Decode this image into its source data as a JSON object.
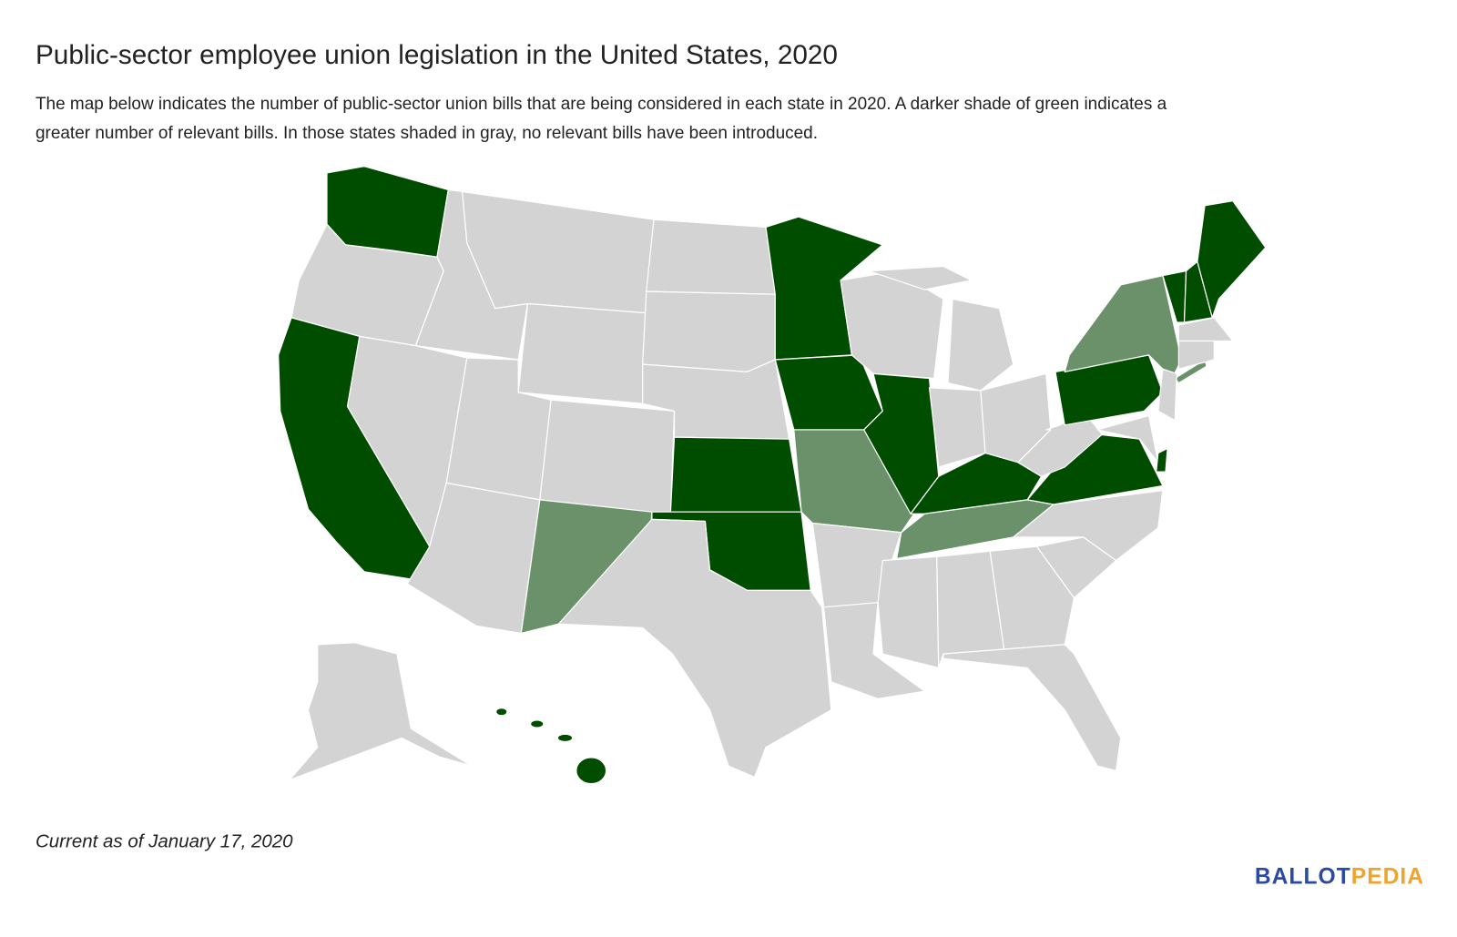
{
  "header": {
    "title": "Public-sector employee union legislation in the United States, 2020",
    "subtitle": [
      "The map below indicates the number of public-sector union bills that are being considered in each state in 2020. A darker shade of green indicates a",
      "greater number of relevant bills. In those states shaded in gray, no relevant bills have been introduced."
    ]
  },
  "map": {
    "shades": [
      "#d3d3d3",
      "#6a9169",
      "#004d00"
    ],
    "border": "#ffffff"
  },
  "footer": {
    "note": "Current as of January 17, 2020",
    "brand": [
      "BALLOT",
      "PEDIA"
    ],
    "brand_colors": [
      "#2b4aa8",
      "#f0a32a"
    ]
  }
}
